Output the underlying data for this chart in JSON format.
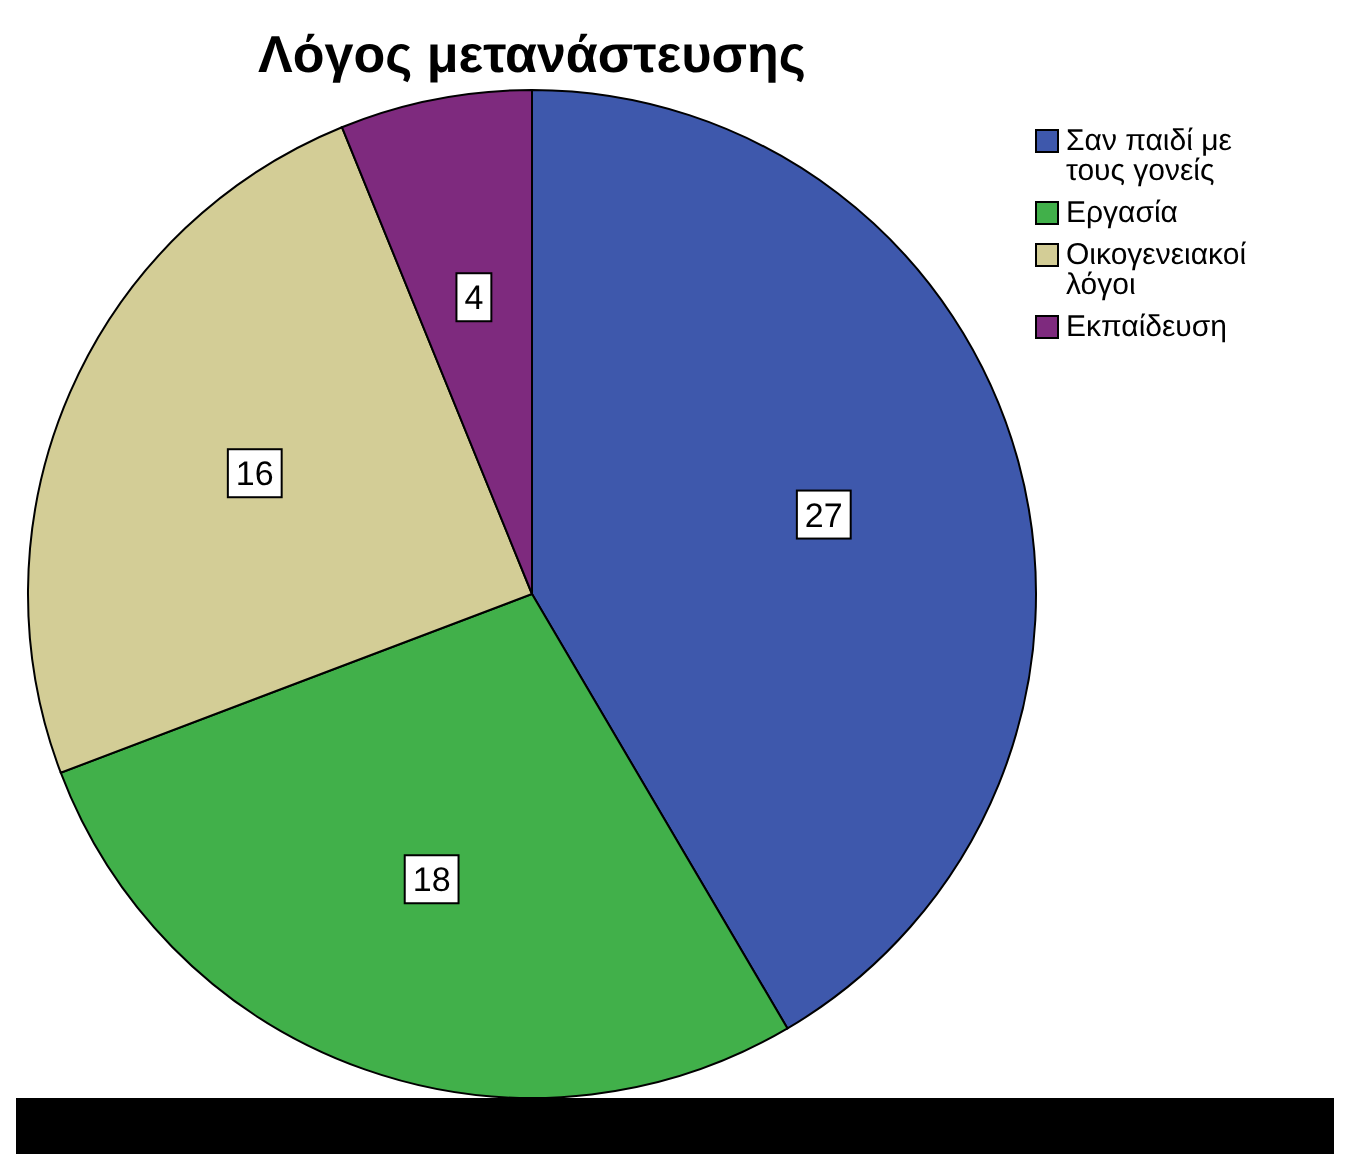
{
  "chart_data": {
    "type": "pie",
    "title": "Λόγος μετανάστευσης",
    "categories": [
      "Σαν παιδί με τους γονείς",
      "Εργασία",
      "Οικογενειακοί λόγοι",
      "Εκπαίδευση"
    ],
    "values": [
      27,
      18,
      16,
      4
    ],
    "colors": [
      "#3e58ac",
      "#41b04a",
      "#d3cd96",
      "#7e2a7e"
    ],
    "data_labels": true,
    "legend": "top right"
  }
}
